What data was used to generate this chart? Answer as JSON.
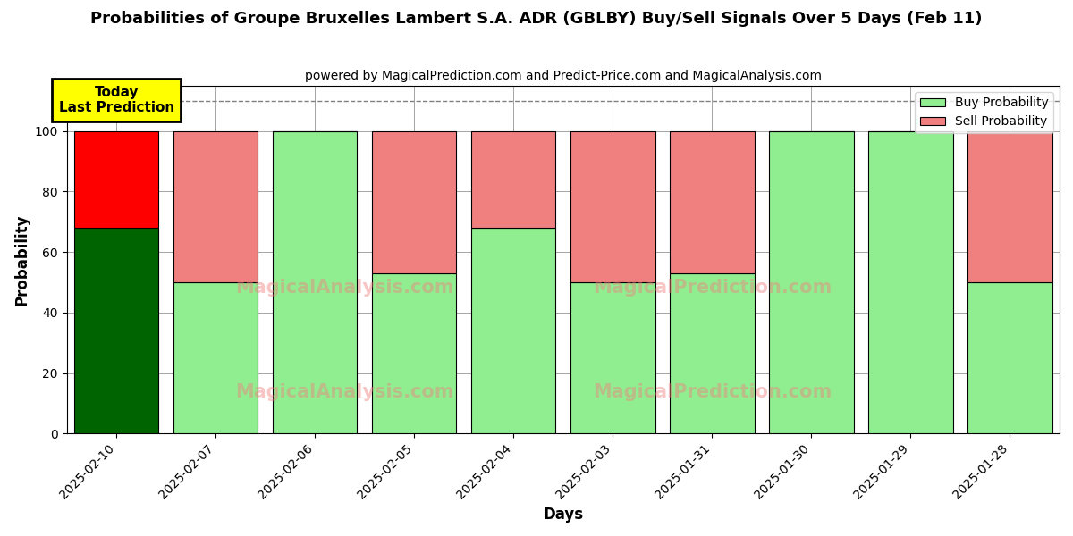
{
  "title": "Probabilities of Groupe Bruxelles Lambert S.A. ADR (GBLBY) Buy/Sell Signals Over 5 Days (Feb 11)",
  "subtitle": "powered by MagicalPrediction.com and Predict-Price.com and MagicalAnalysis.com",
  "xlabel": "Days",
  "ylabel": "Probability",
  "categories": [
    "2025-02-10",
    "2025-02-07",
    "2025-02-06",
    "2025-02-05",
    "2025-02-04",
    "2025-02-03",
    "2025-01-31",
    "2025-01-30",
    "2025-01-29",
    "2025-01-28"
  ],
  "buy_values": [
    68,
    50,
    100,
    53,
    68,
    50,
    53,
    100,
    100,
    50
  ],
  "sell_values": [
    32,
    50,
    0,
    47,
    32,
    50,
    47,
    0,
    0,
    50
  ],
  "today_buy_color": "#006400",
  "today_sell_color": "#FF0000",
  "buy_color": "#90EE90",
  "sell_color": "#F08080",
  "today_annotation": "Today\nLast Prediction",
  "ylim": [
    0,
    115
  ],
  "yticks": [
    0,
    20,
    40,
    60,
    80,
    100
  ],
  "dashed_line_y": 110,
  "legend_buy_label": "Buy Probability",
  "legend_sell_label": "Sell Probability",
  "watermark1": "MagicalAnalysis.com",
  "watermark2": "MagicalPrediction.com",
  "figsize": [
    12.0,
    6.0
  ],
  "dpi": 100,
  "bar_width": 0.85
}
